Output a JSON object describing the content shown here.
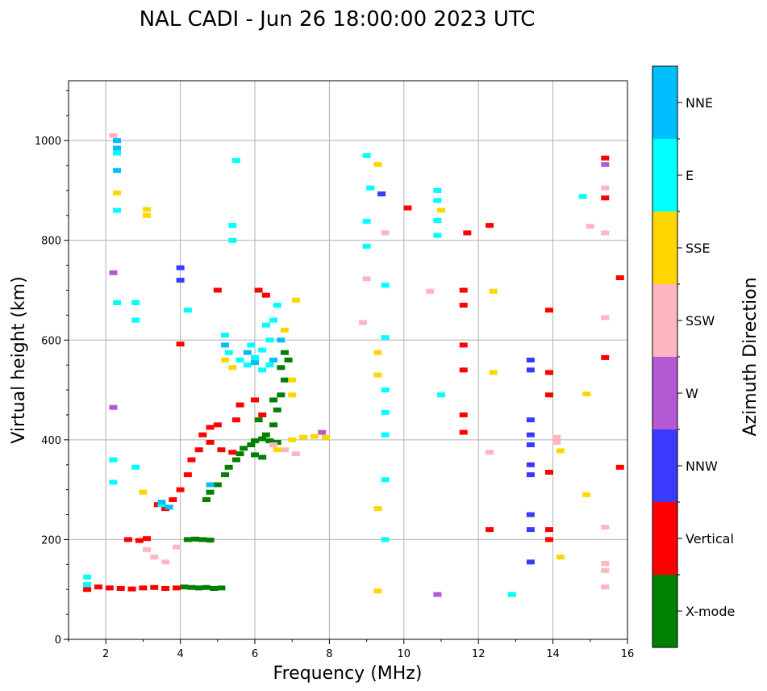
{
  "chart_data": {
    "type": "scatter",
    "title": "NAL CADI - Jun 26 18:00:00 2023 UTC",
    "xlabel": "Frequency (MHz)",
    "ylabel": "Virtual height (km)",
    "xlim": [
      1,
      16
    ],
    "ylim": [
      0,
      1120
    ],
    "xticks": [
      2,
      4,
      6,
      8,
      10,
      12,
      14,
      16
    ],
    "yticks": [
      0,
      200,
      400,
      600,
      800,
      1000
    ],
    "grid": true,
    "colorbar": {
      "label": "Azimuth Direction",
      "categories": [
        {
          "name": "X-mode",
          "color": "#008000"
        },
        {
          "name": "Vertical",
          "color": "#ff0000"
        },
        {
          "name": "NNW",
          "color": "#3a3aff"
        },
        {
          "name": "W",
          "color": "#b558d4"
        },
        {
          "name": "SSW",
          "color": "#ffb6c1"
        },
        {
          "name": "SSE",
          "color": "#ffd700"
        },
        {
          "name": "E",
          "color": "#00ffff"
        },
        {
          "name": "NNE",
          "color": "#00bfff"
        }
      ]
    },
    "series": [
      {
        "name": "X-mode",
        "points": [
          [
            4.1,
            105
          ],
          [
            4.3,
            104
          ],
          [
            4.5,
            103
          ],
          [
            4.7,
            104
          ],
          [
            4.9,
            102
          ],
          [
            5.1,
            103
          ],
          [
            4.2,
            200
          ],
          [
            4.4,
            201
          ],
          [
            4.6,
            200
          ],
          [
            4.8,
            199
          ],
          [
            4.7,
            280
          ],
          [
            4.8,
            295
          ],
          [
            5.0,
            310
          ],
          [
            5.2,
            330
          ],
          [
            5.3,
            345
          ],
          [
            5.5,
            360
          ],
          [
            5.6,
            372
          ],
          [
            5.7,
            383
          ],
          [
            5.9,
            390
          ],
          [
            6.0,
            398
          ],
          [
            6.2,
            402
          ],
          [
            6.4,
            398
          ],
          [
            6.6,
            395
          ],
          [
            6.0,
            370
          ],
          [
            6.2,
            365
          ],
          [
            6.5,
            430
          ],
          [
            6.6,
            460
          ],
          [
            6.7,
            490
          ],
          [
            6.8,
            520
          ],
          [
            6.7,
            545
          ],
          [
            6.8,
            575
          ],
          [
            6.9,
            560
          ],
          [
            6.3,
            410
          ],
          [
            6.1,
            440
          ],
          [
            6.5,
            480
          ]
        ]
      },
      {
        "name": "Vertical",
        "points": [
          [
            1.5,
            100
          ],
          [
            1.8,
            105
          ],
          [
            2.1,
            103
          ],
          [
            2.4,
            102
          ],
          [
            2.7,
            101
          ],
          [
            3.0,
            103
          ],
          [
            3.3,
            104
          ],
          [
            3.6,
            102
          ],
          [
            3.9,
            103
          ],
          [
            2.6,
            200
          ],
          [
            2.9,
            198
          ],
          [
            3.1,
            202
          ],
          [
            3.4,
            270
          ],
          [
            3.6,
            262
          ],
          [
            3.8,
            280
          ],
          [
            4.0,
            300
          ],
          [
            4.2,
            330
          ],
          [
            4.3,
            360
          ],
          [
            4.5,
            380
          ],
          [
            4.6,
            410
          ],
          [
            4.8,
            425
          ],
          [
            5.0,
            430
          ],
          [
            4.8,
            395
          ],
          [
            5.1,
            380
          ],
          [
            5.4,
            375
          ],
          [
            5.5,
            440
          ],
          [
            5.6,
            470
          ],
          [
            6.0,
            480
          ],
          [
            6.2,
            450
          ],
          [
            6.1,
            700
          ],
          [
            6.3,
            690
          ],
          [
            4.0,
            592
          ],
          [
            5.0,
            700
          ],
          [
            11.6,
            700
          ],
          [
            11.6,
            670
          ],
          [
            11.6,
            590
          ],
          [
            11.6,
            540
          ],
          [
            11.6,
            450
          ],
          [
            11.6,
            415
          ],
          [
            11.7,
            815
          ],
          [
            10.1,
            865
          ],
          [
            12.3,
            830
          ],
          [
            12.3,
            220
          ],
          [
            13.9,
            660
          ],
          [
            13.9,
            535
          ],
          [
            13.9,
            490
          ],
          [
            13.9,
            335
          ],
          [
            13.9,
            220
          ],
          [
            13.9,
            200
          ],
          [
            15.4,
            965
          ],
          [
            15.4,
            885
          ],
          [
            15.4,
            565
          ],
          [
            15.8,
            725
          ],
          [
            15.8,
            345
          ]
        ]
      },
      {
        "name": "NNW",
        "points": [
          [
            4.0,
            745
          ],
          [
            4.0,
            720
          ],
          [
            13.4,
            560
          ],
          [
            13.4,
            540
          ],
          [
            13.4,
            440
          ],
          [
            13.4,
            410
          ],
          [
            13.4,
            390
          ],
          [
            13.4,
            350
          ],
          [
            13.4,
            330
          ],
          [
            13.4,
            250
          ],
          [
            13.4,
            220
          ],
          [
            13.4,
            155
          ],
          [
            9.4,
            893
          ]
        ]
      },
      {
        "name": "W",
        "points": [
          [
            2.2,
            735
          ],
          [
            2.2,
            465
          ],
          [
            7.8,
            415
          ],
          [
            10.9,
            90
          ],
          [
            15.4,
            952
          ]
        ]
      },
      {
        "name": "SSW",
        "points": [
          [
            2.2,
            1010
          ],
          [
            3.1,
            180
          ],
          [
            3.3,
            165
          ],
          [
            3.6,
            155
          ],
          [
            3.9,
            185
          ],
          [
            6.5,
            390
          ],
          [
            6.8,
            380
          ],
          [
            7.1,
            372
          ],
          [
            9.0,
            723
          ],
          [
            8.9,
            635
          ],
          [
            9.5,
            815
          ],
          [
            10.7,
            698
          ],
          [
            12.3,
            375
          ],
          [
            14.1,
            405
          ],
          [
            14.1,
            395
          ],
          [
            15.0,
            828
          ],
          [
            15.4,
            905
          ],
          [
            15.4,
            815
          ],
          [
            15.4,
            645
          ],
          [
            15.4,
            225
          ],
          [
            15.4,
            152
          ],
          [
            15.4,
            138
          ],
          [
            15.4,
            105
          ]
        ]
      },
      {
        "name": "SSE",
        "points": [
          [
            2.3,
            895
          ],
          [
            3.1,
            862
          ],
          [
            3.1,
            850
          ],
          [
            3.0,
            295
          ],
          [
            6.6,
            380
          ],
          [
            7.0,
            400
          ],
          [
            7.3,
            405
          ],
          [
            7.6,
            407
          ],
          [
            7.9,
            405
          ],
          [
            7.0,
            490
          ],
          [
            7.0,
            520
          ],
          [
            6.8,
            620
          ],
          [
            7.1,
            680
          ],
          [
            5.2,
            560
          ],
          [
            5.4,
            545
          ],
          [
            9.3,
            952
          ],
          [
            9.3,
            575
          ],
          [
            9.3,
            530
          ],
          [
            9.3,
            262
          ],
          [
            9.3,
            97
          ],
          [
            11.0,
            860
          ],
          [
            12.4,
            698
          ],
          [
            12.4,
            535
          ],
          [
            14.9,
            492
          ],
          [
            14.9,
            290
          ],
          [
            14.2,
            378
          ],
          [
            14.2,
            165
          ]
        ]
      },
      {
        "name": "E",
        "points": [
          [
            1.5,
            125
          ],
          [
            1.5,
            110
          ],
          [
            2.3,
            975
          ],
          [
            2.3,
            860
          ],
          [
            2.3,
            675
          ],
          [
            2.2,
            360
          ],
          [
            2.2,
            315
          ],
          [
            2.8,
            675
          ],
          [
            2.8,
            640
          ],
          [
            2.8,
            345
          ],
          [
            3.5,
            270
          ],
          [
            4.2,
            660
          ],
          [
            5.2,
            610
          ],
          [
            5.4,
            830
          ],
          [
            5.4,
            800
          ],
          [
            5.5,
            960
          ],
          [
            5.3,
            575
          ],
          [
            5.6,
            560
          ],
          [
            5.8,
            550
          ],
          [
            6.0,
            565
          ],
          [
            6.2,
            580
          ],
          [
            6.4,
            600
          ],
          [
            6.5,
            640
          ],
          [
            6.6,
            670
          ],
          [
            6.2,
            540
          ],
          [
            6.4,
            550
          ],
          [
            5.9,
            590
          ],
          [
            6.3,
            630
          ],
          [
            9.0,
            970
          ],
          [
            9.0,
            838
          ],
          [
            9.0,
            788
          ],
          [
            9.1,
            905
          ],
          [
            9.5,
            710
          ],
          [
            9.5,
            605
          ],
          [
            9.5,
            500
          ],
          [
            9.5,
            455
          ],
          [
            9.5,
            410
          ],
          [
            9.5,
            320
          ],
          [
            9.5,
            200
          ],
          [
            10.9,
            900
          ],
          [
            10.9,
            880
          ],
          [
            10.9,
            840
          ],
          [
            10.9,
            810
          ],
          [
            11.0,
            490
          ],
          [
            12.9,
            90
          ],
          [
            14.8,
            888
          ]
        ]
      },
      {
        "name": "NNE",
        "points": [
          [
            2.3,
            1000
          ],
          [
            2.3,
            985
          ],
          [
            2.3,
            940
          ],
          [
            3.5,
            275
          ],
          [
            3.7,
            265
          ],
          [
            4.8,
            310
          ],
          [
            5.2,
            590
          ],
          [
            5.8,
            575
          ],
          [
            6.0,
            555
          ],
          [
            6.5,
            560
          ],
          [
            6.7,
            600
          ]
        ]
      }
    ]
  }
}
